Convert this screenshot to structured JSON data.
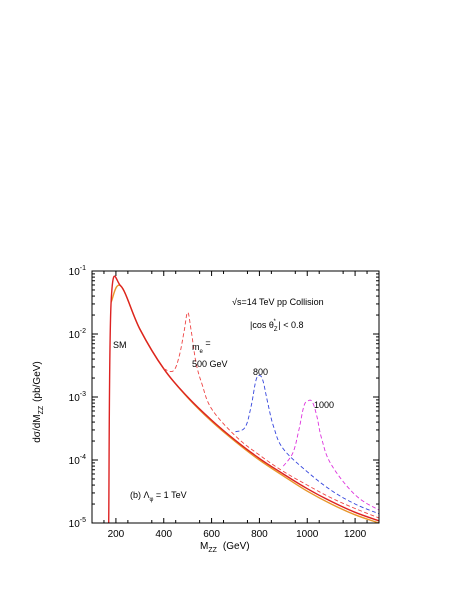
{
  "chart_data": {
    "type": "line",
    "xlabel": "M",
    "xlabel_sub": "ZZ",
    "xlabel_unit": "(GeV)",
    "ylabel": "dσ/dM",
    "ylabel_sub": "ZZ",
    "ylabel_unit": "(pb/GeV)",
    "xlim": [
      100,
      1300
    ],
    "ylim_log10": [
      -5,
      -1
    ],
    "y_scale": "log",
    "grid": false,
    "x_ticks": [
      "200",
      "400",
      "600",
      "800",
      "1000",
      "1200"
    ],
    "y_ticks": [
      {
        "base": "10",
        "exp": "-5",
        "log": -5
      },
      {
        "base": "10",
        "exp": "-4",
        "log": -4
      },
      {
        "base": "10",
        "exp": "-3",
        "log": -3
      },
      {
        "base": "10",
        "exp": "-2",
        "log": -2
      },
      {
        "base": "10",
        "exp": "-1",
        "log": -1
      }
    ],
    "annotations": {
      "energy": "√s=14 TeV    pp Collision",
      "cut_prefix": "|cos  θ",
      "cut_sub": "Z",
      "cut_sup": "*",
      "cut_suffix": " | < 0.8",
      "sm": "SM",
      "me_label": "m",
      "me_sub": "e",
      "me_eq": " =",
      "me_500": "500 GeV",
      "me_800": "800",
      "me_1000": "1000",
      "panel_prefix": "(b)    Λ",
      "panel_sub": "φ",
      "panel_suffix": " =    1 TeV"
    },
    "series": [
      {
        "color": "#e8962a",
        "style": "solid",
        "x": [
          180,
          220,
          300,
          400,
          500,
          600,
          700,
          800,
          900,
          1000,
          1100,
          1200,
          1300
        ],
        "y": [
          0.032,
          0.058,
          0.012,
          0.0028,
          0.00098,
          0.00041,
          0.000195,
          0.0001,
          5.6e-05,
          3.2e-05,
          2e-05,
          1.35e-05,
          1e-05
        ]
      },
      {
        "color": "#dd2222",
        "style": "solid",
        "x": [
          170,
          180,
          220,
          300,
          400,
          500,
          600,
          700,
          800,
          900,
          1000,
          1100,
          1200,
          1300
        ],
        "y": [
          1e-05,
          0.032,
          0.058,
          0.012,
          0.0028,
          0.001,
          0.00043,
          0.000205,
          0.000106,
          6e-05,
          3.5e-05,
          2.2e-05,
          1.48e-05,
          1.08e-05
        ]
      },
      {
        "color": "#ee4444",
        "style": "dashed",
        "x": [
          400,
          440,
          465,
          485,
          500,
          515,
          535,
          560,
          600,
          700,
          800,
          900,
          1000,
          1100,
          1200,
          1300
        ],
        "y": [
          0.0028,
          0.0026,
          0.0045,
          0.011,
          0.022,
          0.011,
          0.0035,
          0.0016,
          0.00065,
          0.00024,
          0.00012,
          6.6e-05,
          4e-05,
          2.5e-05,
          1.7e-05,
          1.2e-05
        ]
      },
      {
        "color": "#3344dd",
        "style": "dashed",
        "x": [
          700,
          740,
          765,
          785,
          800,
          815,
          835,
          860,
          900,
          1000,
          1100,
          1200,
          1300
        ],
        "y": [
          0.00028,
          0.00033,
          0.0007,
          0.0018,
          0.0022,
          0.0018,
          0.0008,
          0.00033,
          0.00015,
          6.5e-05,
          3.3e-05,
          2e-05,
          1.4e-05
        ]
      },
      {
        "color": "#dd33dd",
        "style": "dashed",
        "x": [
          900,
          940,
          965,
          985,
          1000,
          1020,
          1040,
          1060,
          1100,
          1200,
          1300
        ],
        "y": [
          8e-05,
          0.00013,
          0.0003,
          0.0007,
          0.00085,
          0.00085,
          0.0005,
          0.00022,
          8.5e-05,
          2.8e-05,
          1.6e-05
        ]
      }
    ]
  }
}
